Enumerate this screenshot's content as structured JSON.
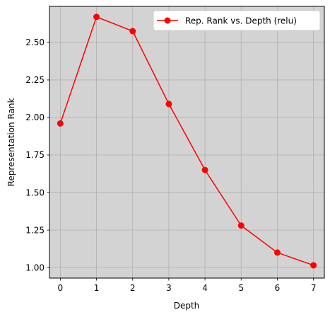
{
  "colors": {
    "series": "#ff0000",
    "plot_background": "#d3d3d3",
    "grid": "#b0b0b0",
    "legend_background": "#ffffff"
  },
  "chart_data": {
    "type": "line",
    "title": "",
    "xlabel": "Depth",
    "ylabel": "Representation Rank",
    "xlim": [
      -0.3,
      7.3
    ],
    "ylim": [
      0.93,
      2.74
    ],
    "grid": true,
    "legend_position": "top-right",
    "x_ticks": [
      0,
      1,
      2,
      3,
      4,
      5,
      6,
      7
    ],
    "x_tick_labels": [
      "0",
      "1",
      "2",
      "3",
      "4",
      "5",
      "6",
      "7"
    ],
    "y_ticks": [
      1.0,
      1.25,
      1.5,
      1.75,
      2.0,
      2.25,
      2.5
    ],
    "y_tick_labels": [
      "1.00",
      "1.25",
      "1.50",
      "1.75",
      "2.00",
      "2.25",
      "2.50"
    ],
    "x": [
      0,
      1,
      2,
      3,
      4,
      5,
      6,
      7
    ],
    "series": [
      {
        "name": "Rep. Rank vs. Depth (relu)",
        "values": [
          1.96,
          2.67,
          2.575,
          2.09,
          1.65,
          1.28,
          1.1,
          1.015
        ],
        "marker": "circle"
      }
    ]
  }
}
